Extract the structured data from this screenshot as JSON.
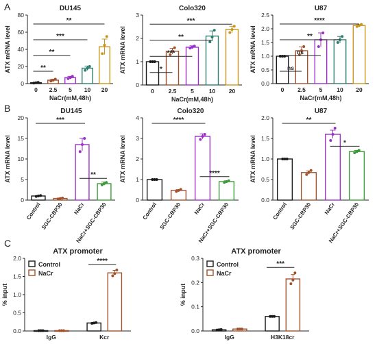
{
  "panel_labels": [
    "A",
    "B",
    "C"
  ],
  "colors": {
    "black": "#1a1a1a",
    "brown": "#a0522d",
    "purple": "#9b30c9",
    "teal": "#2e7d6e",
    "gold": "#c8961e",
    "red": "#c0392b",
    "green": "#3d9a3a"
  },
  "chart_data": [
    {
      "id": "A1",
      "type": "bar",
      "title": "DU145",
      "xlabel": "NaCr(mM,48h)",
      "ylabel": "ATX mRNA level",
      "categories": [
        "0",
        "2.5",
        "5",
        "10",
        "20"
      ],
      "values": [
        1,
        4,
        7,
        18,
        43
      ],
      "errors": [
        0.5,
        1.2,
        1.5,
        2.5,
        9
      ],
      "points": [
        [
          0.6,
          1.0,
          1.4
        ],
        [
          3.0,
          4.0,
          5.2
        ],
        [
          5.8,
          7.0,
          8.5
        ],
        [
          15.5,
          18.0,
          20.0
        ],
        [
          35,
          45,
          55
        ]
      ],
      "ylim": [
        0,
        80
      ],
      "yticks": [
        0,
        20,
        40,
        60,
        80
      ],
      "bar_colors": [
        "#1a1a1a",
        "#a0522d",
        "#9b30c9",
        "#2e7d6e",
        "#c8961e"
      ],
      "fill": "none",
      "significance": [
        {
          "from": 0,
          "to": 1,
          "label": "**"
        },
        {
          "from": 0,
          "to": 2,
          "label": "**"
        },
        {
          "from": 0,
          "to": 3,
          "label": "***"
        },
        {
          "from": 0,
          "to": 4,
          "label": "**"
        }
      ]
    },
    {
      "id": "A2",
      "type": "bar",
      "title": "Colo320",
      "xlabel": "NaCr(mM,48h)",
      "ylabel": "ATX mRNA level",
      "categories": [
        "0",
        "2.5",
        "5",
        "10",
        "20"
      ],
      "values": [
        1.0,
        1.45,
        1.62,
        2.1,
        2.38
      ],
      "errors": [
        0.02,
        0.12,
        0.06,
        0.22,
        0.14
      ],
      "points": [
        [
          1.0,
          1.0,
          1.0
        ],
        [
          1.3,
          1.45,
          1.6
        ],
        [
          1.58,
          1.62,
          1.67
        ],
        [
          1.85,
          2.05,
          2.35
        ],
        [
          2.25,
          2.38,
          2.52
        ]
      ],
      "ylim": [
        0,
        3
      ],
      "yticks": [
        0,
        1,
        2,
        3
      ],
      "bar_colors": [
        "#1a1a1a",
        "#a0522d",
        "#9b30c9",
        "#2e7d6e",
        "#c8961e"
      ],
      "fill": "none",
      "significance": [
        {
          "from": 0,
          "to": 1,
          "label": "*"
        },
        {
          "from": 0,
          "to": 2,
          "label": "***"
        },
        {
          "from": 0,
          "to": 3,
          "label": "**"
        },
        {
          "from": 0,
          "to": 4,
          "label": "***"
        }
      ]
    },
    {
      "id": "A3",
      "type": "bar",
      "title": "U87",
      "xlabel": "NaCr(mM,48h)",
      "ylabel": "ATX mRNA level",
      "categories": [
        "0",
        "2.5",
        "5",
        "10",
        "20"
      ],
      "values": [
        1.0,
        1.2,
        1.6,
        1.6,
        2.12
      ],
      "errors": [
        0.02,
        0.14,
        0.25,
        0.12,
        0.04
      ],
      "points": [
        [
          1.0,
          1.0,
          1.0
        ],
        [
          1.05,
          1.2,
          1.35
        ],
        [
          1.35,
          1.6,
          1.85
        ],
        [
          1.5,
          1.6,
          1.72
        ],
        [
          2.08,
          2.12,
          2.16
        ]
      ],
      "ylim": [
        0,
        2.5
      ],
      "yticks": [
        0,
        0.5,
        1.0,
        1.5,
        2.0,
        2.5
      ],
      "ytick_labels": [
        "0.0",
        "0.5",
        "1.0",
        "1.5",
        "2.0",
        "2.5"
      ],
      "bar_colors": [
        "#1a1a1a",
        "#a0522d",
        "#9b30c9",
        "#2e7d6e",
        "#c8961e"
      ],
      "fill": "none",
      "significance": [
        {
          "from": 0,
          "to": 1,
          "label": "ns"
        },
        {
          "from": 0,
          "to": 2,
          "label": "ns"
        },
        {
          "from": 0,
          "to": 3,
          "label": "**"
        },
        {
          "from": 0,
          "to": 4,
          "label": "****"
        }
      ]
    },
    {
      "id": "B1",
      "type": "bar",
      "title": "DU145",
      "xlabel": "",
      "ylabel": "ATX mRNA level",
      "categories": [
        "Control",
        "SGC-CBP30",
        "NaCr",
        "NaCr+SGC-CBP30"
      ],
      "values": [
        1.0,
        0.4,
        13.5,
        4.0
      ],
      "errors": [
        0.1,
        0.1,
        1.5,
        0.4
      ],
      "points": [
        [
          0.9,
          1.0,
          1.1
        ],
        [
          0.3,
          0.4,
          0.5
        ],
        [
          11.8,
          13.5,
          15.0
        ],
        [
          3.7,
          4.0,
          4.3
        ]
      ],
      "ylim": [
        0,
        20
      ],
      "yticks": [
        0,
        5,
        10,
        15,
        20
      ],
      "bar_colors": [
        "#1a1a1a",
        "#a0522d",
        "#9b30c9",
        "#3d9a3a"
      ],
      "fill": "none",
      "significance": [
        {
          "from": 0,
          "to": 2,
          "label": "***"
        },
        {
          "from": 2,
          "to": 3,
          "label": "**"
        }
      ]
    },
    {
      "id": "B2",
      "type": "bar",
      "title": "Colo320",
      "xlabel": "",
      "ylabel": "ATX mRNA level",
      "categories": [
        "Control",
        "SGC-CBP30",
        "NaCr",
        "NaCr+SGC-CBP30"
      ],
      "values": [
        1.0,
        0.47,
        3.1,
        0.9
      ],
      "errors": [
        0.02,
        0.04,
        0.12,
        0.04
      ],
      "points": [
        [
          1.0,
          1.0,
          1.0
        ],
        [
          0.42,
          0.47,
          0.52
        ],
        [
          2.95,
          3.1,
          3.2
        ],
        [
          0.86,
          0.9,
          0.94
        ]
      ],
      "ylim": [
        0,
        4
      ],
      "yticks": [
        0,
        1,
        2,
        3,
        4
      ],
      "bar_colors": [
        "#1a1a1a",
        "#a0522d",
        "#9b30c9",
        "#3d9a3a"
      ],
      "fill": "none",
      "significance": [
        {
          "from": 0,
          "to": 2,
          "label": "****"
        },
        {
          "from": 2,
          "to": 3,
          "label": "****"
        }
      ]
    },
    {
      "id": "B3",
      "type": "bar",
      "title": "U87",
      "xlabel": "",
      "ylabel": "ATX mRNA level",
      "categories": [
        "Control",
        "SGC-CBP30",
        "NaCr",
        "NaCr+SGC-CBP30"
      ],
      "values": [
        1.0,
        0.67,
        1.6,
        1.18
      ],
      "errors": [
        0.01,
        0.04,
        0.1,
        0.03
      ],
      "points": [
        [
          1.0,
          1.0,
          1.0
        ],
        [
          0.62,
          0.67,
          0.72
        ],
        [
          1.45,
          1.6,
          1.75
        ],
        [
          1.15,
          1.18,
          1.21
        ]
      ],
      "ylim": [
        0,
        2.0
      ],
      "yticks": [
        0,
        0.5,
        1.0,
        1.5,
        2.0
      ],
      "ytick_labels": [
        "0.0",
        "0.5",
        "1.0",
        "1.5",
        "2.0"
      ],
      "bar_colors": [
        "#1a1a1a",
        "#a0522d",
        "#9b30c9",
        "#3d9a3a"
      ],
      "fill": "none",
      "significance": [
        {
          "from": 0,
          "to": 2,
          "label": "**"
        },
        {
          "from": 2,
          "to": 3,
          "label": "*"
        }
      ]
    },
    {
      "id": "C1",
      "type": "bar",
      "title": "ATX promoter",
      "xlabel": "",
      "ylabel": "% input",
      "categories": [
        "IgG",
        "Kcr"
      ],
      "series": [
        {
          "name": "Control",
          "values": [
            0.01,
            0.22
          ],
          "errors": [
            0.005,
            0.015
          ],
          "color": "#1a1a1a",
          "points": [
            [
              0.01,
              0.01,
              0.01
            ],
            [
              0.21,
              0.22,
              0.23
            ]
          ]
        },
        {
          "name": "NaCr",
          "values": [
            0.01,
            1.6
          ],
          "errors": [
            0.005,
            0.07
          ],
          "color": "#a0522d",
          "points": [
            [
              0.01,
              0.01,
              0.01
            ],
            [
              1.52,
              1.58,
              1.68
            ]
          ]
        }
      ],
      "ylim": [
        0,
        2.0
      ],
      "yticks": [
        0,
        0.5,
        1.0,
        1.5,
        2.0
      ],
      "ytick_labels": [
        "0.0",
        "0.5",
        "1.0",
        "1.5",
        "2.0"
      ],
      "legend": "top-left",
      "significance": [
        {
          "category": 1,
          "label": "****"
        }
      ]
    },
    {
      "id": "C2",
      "type": "bar",
      "title": "ATX promoter",
      "xlabel": "",
      "ylabel": "% input",
      "categories": [
        "IgG",
        "H3K18cr"
      ],
      "series": [
        {
          "name": "Control",
          "values": [
            0.005,
            0.06
          ],
          "errors": [
            0.002,
            0.002
          ],
          "color": "#1a1a1a",
          "points": [
            [
              0.004,
              0.005,
              0.006
            ],
            [
              0.06,
              0.06,
              0.06
            ]
          ]
        },
        {
          "name": "NaCr",
          "values": [
            0.008,
            0.215
          ],
          "errors": [
            0.002,
            0.018
          ],
          "color": "#a0522d",
          "points": [
            [
              0.008,
              0.008,
              0.008
            ],
            [
              0.195,
              0.21,
              0.24
            ]
          ]
        }
      ],
      "ylim": [
        0,
        0.3
      ],
      "yticks": [
        0,
        0.1,
        0.2,
        0.3
      ],
      "ytick_labels": [
        "0.0",
        "0.1",
        "0.2",
        "0.3"
      ],
      "legend": "top-left",
      "significance": [
        {
          "category": 1,
          "label": "***"
        }
      ]
    }
  ]
}
